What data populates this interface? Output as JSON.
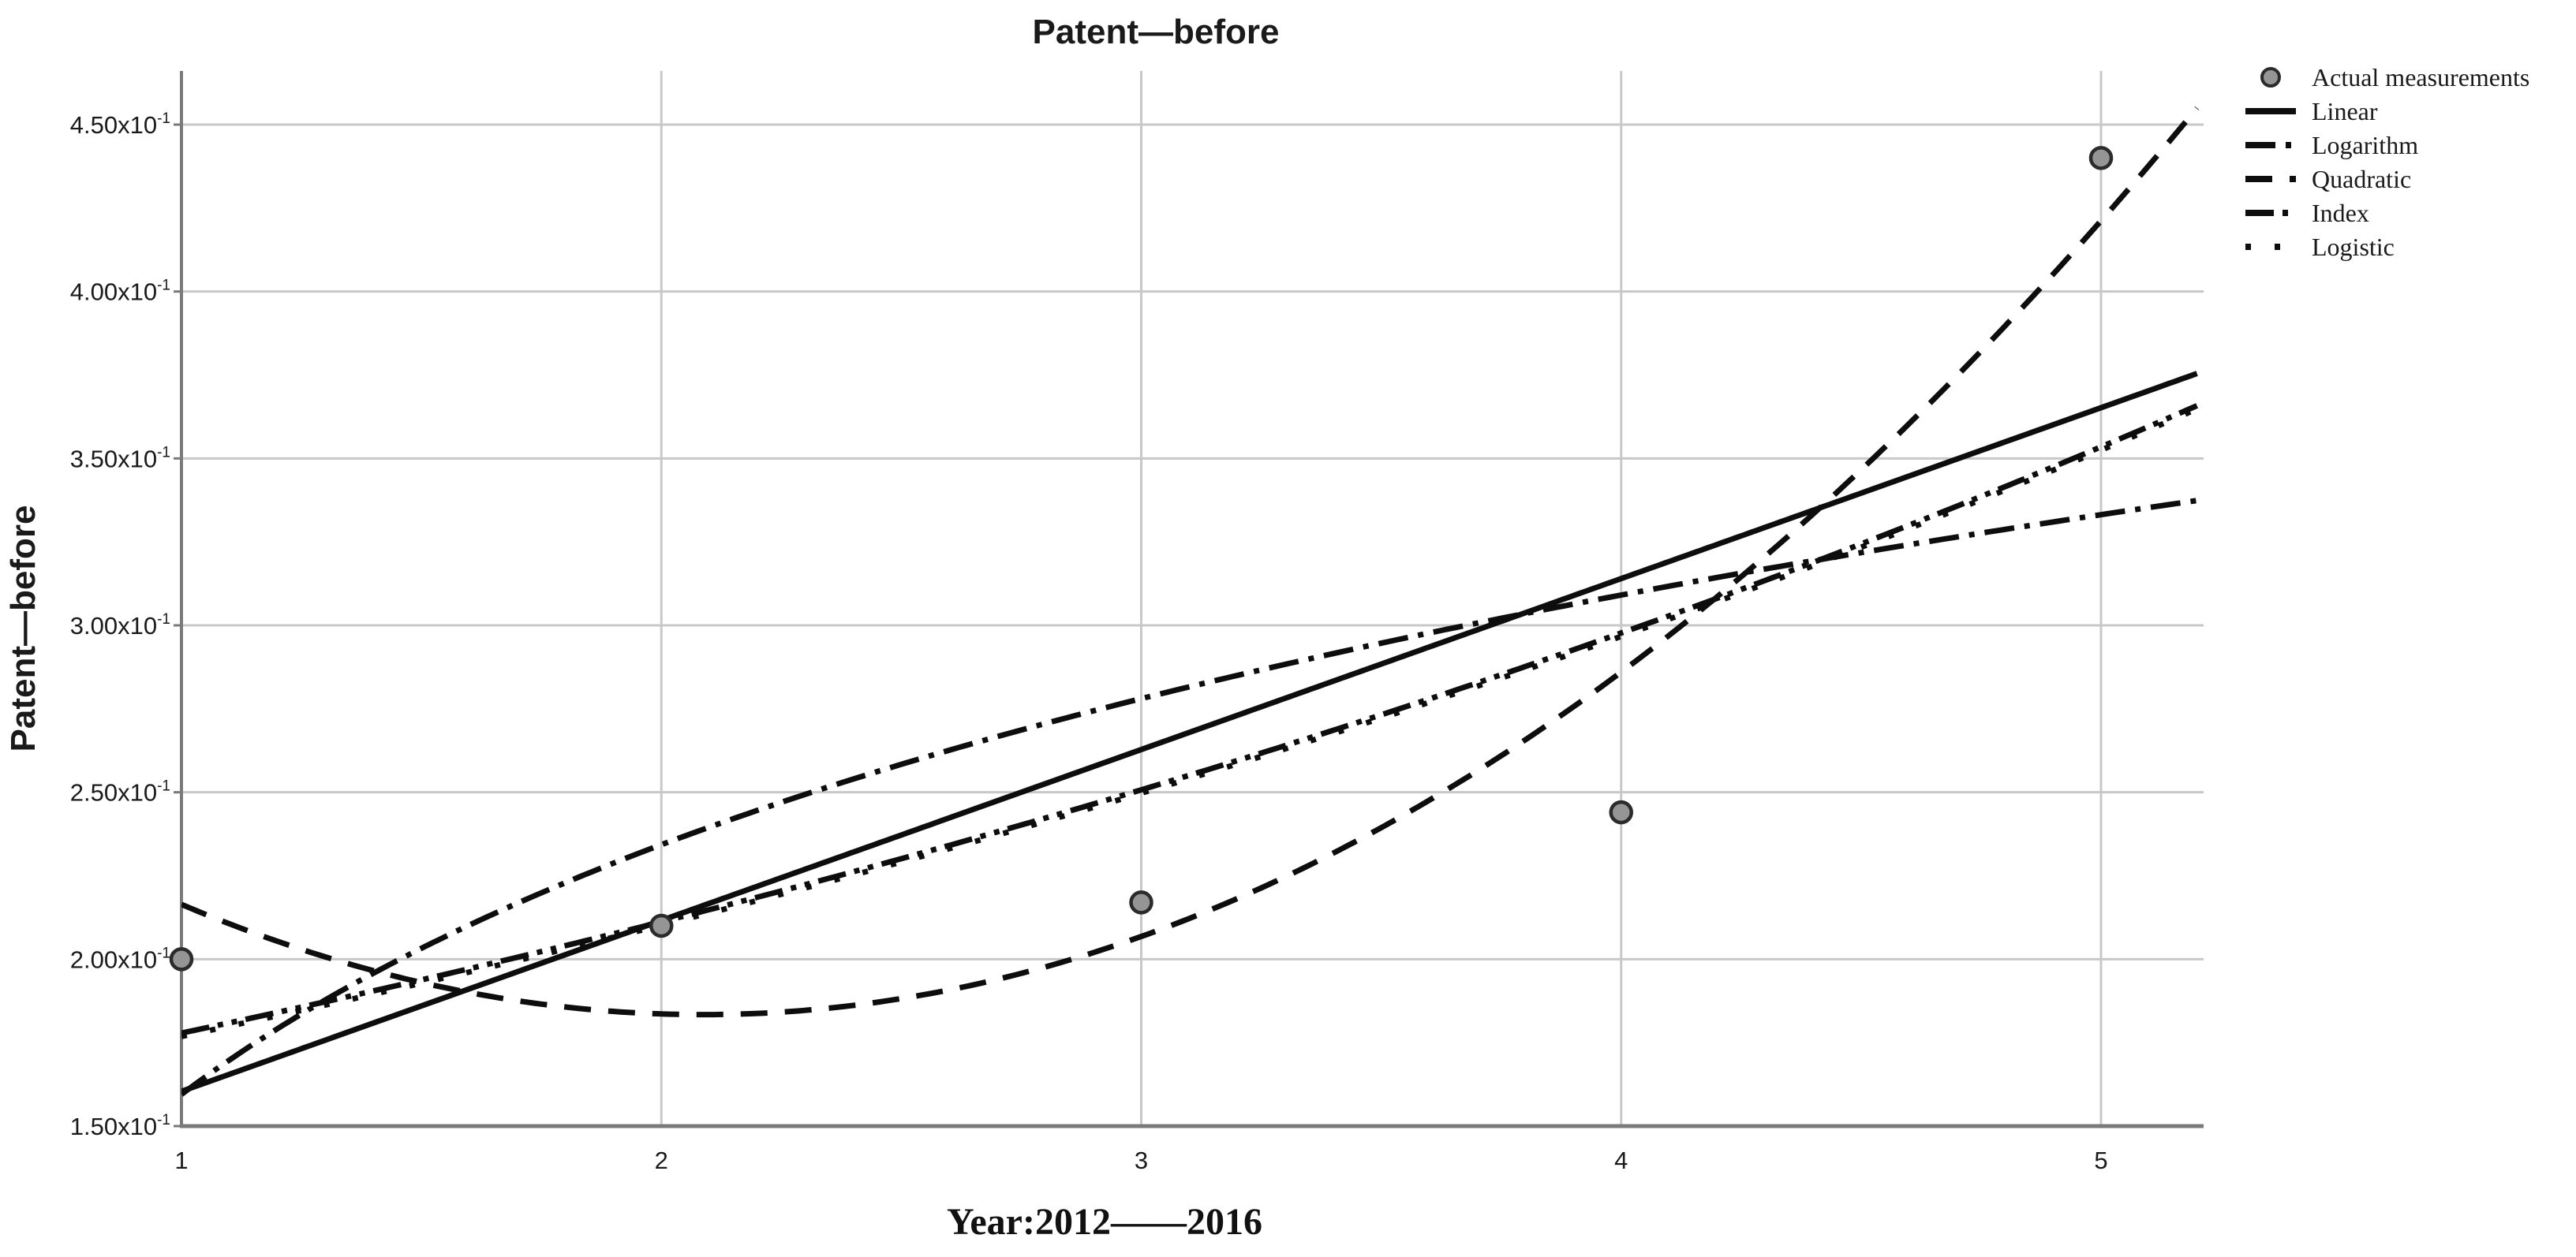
{
  "figure": {
    "title": "Patent—before",
    "y_axis_title": "Patent—before",
    "x_axis_title": "Year:2012——2016"
  },
  "colors": {
    "curve": "#0d0d0d",
    "point_fill": "#959595",
    "point_stroke": "#2b2b2b",
    "grid": "#c8c8c8",
    "axis": "#7a7a7a",
    "text": "#1a1a1a"
  },
  "chart_data": {
    "type": "line",
    "title": "Patent—before",
    "xlabel": "Year:2012——2016",
    "ylabel": "Patent—before",
    "x_ticks": [
      1,
      2,
      3,
      4,
      5
    ],
    "x_range": [
      1,
      5.214
    ],
    "y_tick_mantissas": [
      "1.50",
      "2.00",
      "2.50",
      "3.00",
      "3.50",
      "4.00",
      "4.50"
    ],
    "y_tick_values": [
      1.5,
      2.0,
      2.5,
      3.0,
      3.5,
      4.0,
      4.5
    ],
    "y_times_symbol": "x10",
    "y_exponent": "-1",
    "y_unit_note": "all y values in units of 10^-1",
    "y_range": [
      1.5,
      4.665
    ],
    "grid": true,
    "legend_position": "top-right-outside",
    "actual_points": {
      "label": "Actual measurements",
      "x": [
        1,
        2,
        3,
        4,
        5
      ],
      "y": [
        2.0,
        2.1,
        2.17,
        2.44,
        4.4
      ]
    },
    "fits": [
      {
        "label": "Linear",
        "style": "solid",
        "fn": "linear",
        "params": [
          1.092,
          0.512
        ]
      },
      {
        "label": "Logarithm",
        "style": "dash-dot",
        "fn": "log",
        "params": [
          1.595,
          1.079
        ]
      },
      {
        "label": "Quadratic",
        "style": "dash",
        "fn": "quad",
        "params": [
          3.052,
          -1.168,
          0.28
        ]
      },
      {
        "label": "Index",
        "style": "dash-dot-dot",
        "fn": "exp",
        "params": [
          1.498,
          0.1717
        ]
      },
      {
        "label": "Logistic",
        "style": "dot",
        "fn": "exp",
        "params": [
          1.498,
          0.1717
        ]
      }
    ],
    "legend": [
      "Actual measurements",
      "Linear",
      "Logarithm",
      "Quadratic",
      "Index",
      "Logistic"
    ]
  }
}
